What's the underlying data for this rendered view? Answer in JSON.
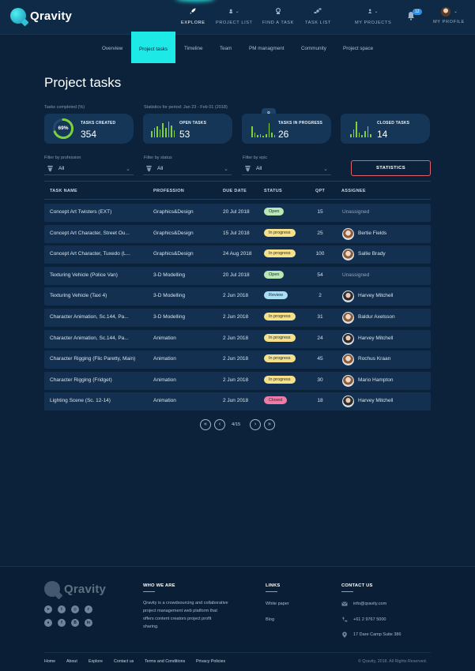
{
  "app": {
    "logo_text": "Qravity"
  },
  "topnav": {
    "explore": "EXPLORE",
    "project_list": "PROJECT LIST",
    "find_a_task": "FIND A TASK",
    "task_list": "TASK LIST",
    "my_projects": "MY PROJECTS",
    "my_profile": "MY PROFILE",
    "notification_count": "12"
  },
  "subnav": {
    "overview": "Overview",
    "project_tasks": "Project tasks",
    "timeline": "Timeline",
    "team": "Team",
    "pm_management": "PM managment",
    "community": "Community",
    "project_space": "Project space"
  },
  "page": {
    "title": "Project tasks",
    "tasks_completed_caption": "Tasks completed (%)",
    "period_caption": "Statistics for period: Jan 23 - Feb 01 (2018)"
  },
  "stats": {
    "created": {
      "label": "TASKS CREATED",
      "value": "354",
      "percent_label": "69%",
      "percent": 0.69
    },
    "open": {
      "label": "OPEN TASKS",
      "value": "53"
    },
    "in_progress": {
      "label": "TASKS IN PROGRESS",
      "value": "26",
      "bubble": "8"
    },
    "closed": {
      "label": "CLOSED TASKS",
      "value": "14"
    }
  },
  "filters": {
    "profession_caption": "Filter by profession",
    "profession_value": "All",
    "status_caption": "Filter by status",
    "status_value": "All",
    "epic_caption": "Filter by epic",
    "epic_value": "All",
    "statistics_button": "STATISTICS"
  },
  "table": {
    "headers": {
      "task_name": "TASK NAME",
      "profession": "PROFESSION",
      "due_date": "DUE DATE",
      "status": "STATUS",
      "qpt": "QPT",
      "assignee": "ASSIGNEE"
    },
    "rows": [
      {
        "task": "Concept Art Twisters (EXT)",
        "profession": "Graphics&Design",
        "due": "20 Jul 2018",
        "status": "Open",
        "status_kind": "open",
        "qpt": "15",
        "assignee": "Unassigned"
      },
      {
        "task": "Concept Art Character, Street Ou...",
        "profession": "Graphics&Design",
        "due": "15 Jul 2018",
        "status": "In progress",
        "status_kind": "inprogress",
        "qpt": "25",
        "assignee": "Bertie Fields"
      },
      {
        "task": "Concept Art Character, Tuxedo (L...",
        "profession": "Graphics&Design",
        "due": "24 Aug 2018",
        "status": "In progress",
        "status_kind": "inprogress",
        "qpt": "100",
        "assignee": "Sallie Brady"
      },
      {
        "task": "Texturing Vehicle (Police Van)",
        "profession": "3-D Modelling",
        "due": "20 Jul 2018",
        "status": "Open",
        "status_kind": "open",
        "qpt": "54",
        "assignee": "Unassigned"
      },
      {
        "task": "Texturing Vehicle (Taxi 4)",
        "profession": "3-D Modelling",
        "due": "2 Jun 2018",
        "status": "Review",
        "status_kind": "review",
        "qpt": "2",
        "assignee": "Harvey Mitchell"
      },
      {
        "task": "Character Animation, Sc.144, Pa...",
        "profession": "3-D Modelling",
        "due": "2 Jun 2018",
        "status": "In progress",
        "status_kind": "inprogress",
        "qpt": "31",
        "assignee": "Baldur Axelsson"
      },
      {
        "task": "Character Animation, Sc.144, Pa...",
        "profession": "Animation",
        "due": "2 Jun 2018",
        "status": "In progress",
        "status_kind": "inprogress",
        "qpt": "24",
        "assignee": "Harvey Mitchell"
      },
      {
        "task": "Character Rigging (Flic Paretty, Main)",
        "profession": "Animation",
        "due": "2 Jun 2018",
        "status": "In progress",
        "status_kind": "inprogress",
        "qpt": "45",
        "assignee": "Rochus Kraan"
      },
      {
        "task": "Character Rigging (Fridget)",
        "profession": "Animation",
        "due": "2 Jun 2018",
        "status": "In progress",
        "status_kind": "inprogress",
        "qpt": "30",
        "assignee": "Mario Hampton"
      },
      {
        "task": "Lighting Scene (Sc. 12-14)",
        "profession": "Animation",
        "due": "2 Jun 2018",
        "status": "Closed",
        "status_kind": "closed",
        "qpt": "18",
        "assignee": "Harvey Mitchell"
      }
    ]
  },
  "pagination": {
    "text": "4/15",
    "first": "«",
    "prev": "‹",
    "next": "›",
    "last": "»"
  },
  "footer": {
    "logo_text": "Qravity",
    "who_we_are_heading": "WHO WE ARE",
    "who_we_are_lines": [
      "Qravity is a crowdsourcing and collaborative",
      "project management web platform that",
      "offers content creators project profit",
      "sharing."
    ],
    "links_heading": "LINKS",
    "link_white_paper": "White paper",
    "link_blog": "Blog",
    "contact_heading": "CONTACT US",
    "email": "info@qravity.com",
    "phone": "+61 2 9767 5000",
    "address": "17 Dare Camp Suite 386",
    "nav": [
      "Home",
      "About",
      "Explore",
      "Contact us",
      "Terms and Conditions",
      "Privacy Policies"
    ],
    "copyright": "© Qravity, 2018. All Rights Reserved."
  },
  "colors": {
    "background": "#0c223b",
    "accent_cyan": "#1de9e6",
    "bar_green": "#7fd13b",
    "statistics_border": "#e0606e"
  }
}
